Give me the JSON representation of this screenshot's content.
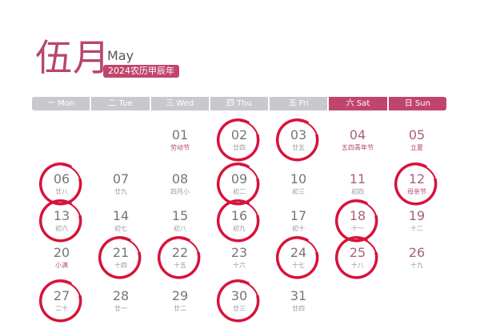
{
  "header": {
    "month_cn": "伍月",
    "month_en": "May",
    "lunar_badge": "2024农历甲辰年"
  },
  "weekdays": [
    {
      "label": "一 Mon"
    },
    {
      "label": "二 Tue"
    },
    {
      "label": "三 Wed"
    },
    {
      "label": "四 Thu"
    },
    {
      "label": "五 Fri"
    },
    {
      "label": "六 Sat",
      "weekend": true
    },
    {
      "label": "日 Sun",
      "weekend": true
    }
  ],
  "colors": {
    "accent": "#c0456c",
    "ring": "#d8123a",
    "header_gray": "#c9c9cd"
  },
  "first_weekday_index": 2,
  "days": [
    {
      "d": "01",
      "l": "劳动节",
      "fest": true
    },
    {
      "d": "02",
      "l": "廿四",
      "circled": true
    },
    {
      "d": "03",
      "l": "廿五",
      "circled": true
    },
    {
      "d": "04",
      "l": "五四青年节",
      "fest": true
    },
    {
      "d": "05",
      "l": "立夏",
      "fest": true
    },
    {
      "d": "06",
      "l": "廿八",
      "circled": true
    },
    {
      "d": "07",
      "l": "廿九"
    },
    {
      "d": "08",
      "l": "四月小"
    },
    {
      "d": "09",
      "l": "初二",
      "circled": true
    },
    {
      "d": "10",
      "l": "初三"
    },
    {
      "d": "11",
      "l": "初四"
    },
    {
      "d": "12",
      "l": "母亲节",
      "circled": true,
      "fest": true
    },
    {
      "d": "13",
      "l": "初六",
      "circled": true
    },
    {
      "d": "14",
      "l": "初七"
    },
    {
      "d": "15",
      "l": "初八"
    },
    {
      "d": "16",
      "l": "初九",
      "circled": true
    },
    {
      "d": "17",
      "l": "初十"
    },
    {
      "d": "18",
      "l": "十一",
      "circled": true
    },
    {
      "d": "19",
      "l": "十二"
    },
    {
      "d": "20",
      "l": "小满",
      "fest": true
    },
    {
      "d": "21",
      "l": "十四",
      "circled": true
    },
    {
      "d": "22",
      "l": "十五",
      "circled": true
    },
    {
      "d": "23",
      "l": "十六"
    },
    {
      "d": "24",
      "l": "十七",
      "circled": true
    },
    {
      "d": "25",
      "l": "十八",
      "circled": true
    },
    {
      "d": "26",
      "l": "十九"
    },
    {
      "d": "27",
      "l": "二十",
      "circled": true
    },
    {
      "d": "28",
      "l": "廿一"
    },
    {
      "d": "29",
      "l": "廿二"
    },
    {
      "d": "30",
      "l": "廿三",
      "circled": true
    },
    {
      "d": "31",
      "l": "廿四"
    }
  ]
}
